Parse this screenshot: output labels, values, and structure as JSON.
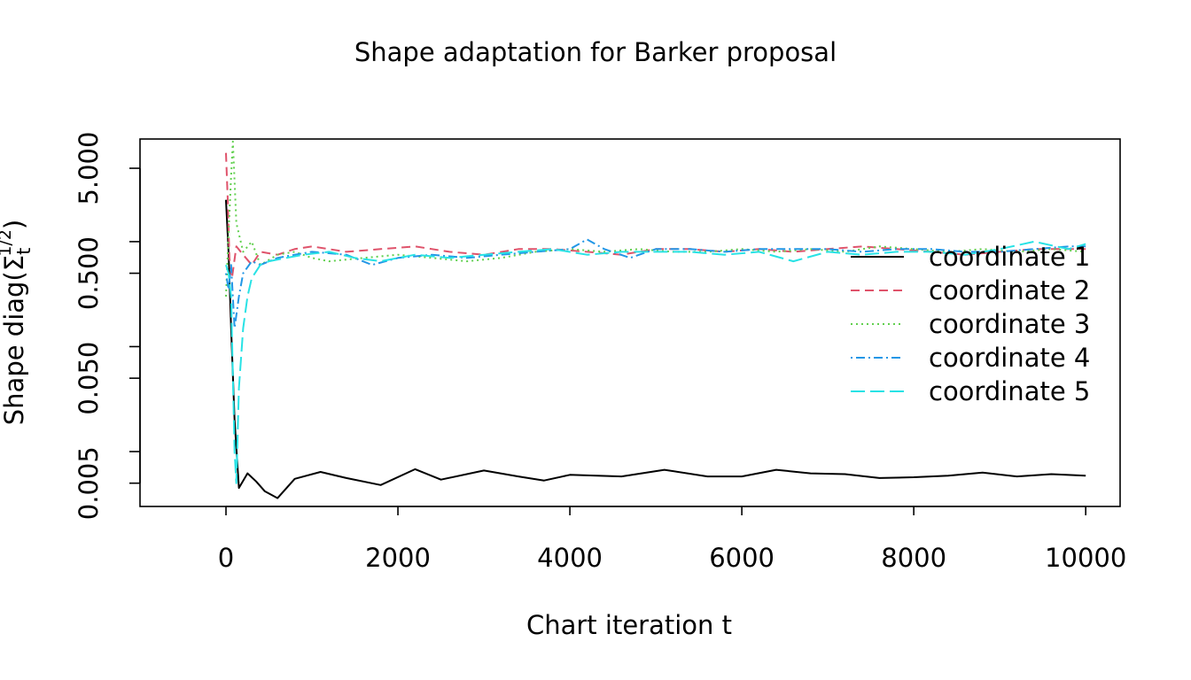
{
  "chart_data": {
    "type": "line",
    "title": "Shape adaptation for Barker proposal",
    "xlabel": "Chart iteration t",
    "ylabel_main": "Shape diag(",
    "ylabel_base": "Σ",
    "ylabel_sub": "t",
    "ylabel_sup": "1/2",
    "ylabel_close": ")",
    "y_scale": "log",
    "xlim": [
      -1000,
      10400
    ],
    "ylim": [
      0.003,
      9.5
    ],
    "grid": false,
    "legend_position": "right",
    "x_ticks": [
      0,
      2000,
      4000,
      6000,
      8000,
      10000
    ],
    "x_tick_labels": [
      "0",
      "2000",
      "4000",
      "6000",
      "8000",
      "10000"
    ],
    "y_labeled_ticks": [
      0.005,
      0.05,
      0.5,
      5
    ],
    "y_tick_labels": [
      "0.005",
      "0.050",
      "0.500",
      "5.000"
    ],
    "y_minor_ticks": [
      0.01,
      0.1,
      1
    ],
    "series": [
      {
        "name": "coordinate 1",
        "color": "#000000",
        "dash": "solid",
        "x": [
          0,
          30,
          60,
          100,
          150,
          250,
          350,
          450,
          600,
          800,
          1100,
          1400,
          1800,
          2200,
          2500,
          3000,
          3400,
          3700,
          4000,
          4600,
          5100,
          5600,
          6000,
          6400,
          6800,
          7200,
          7600,
          8000,
          8400,
          8800,
          9200,
          9600,
          10000
        ],
        "y": [
          2.5,
          0.8,
          0.15,
          0.02,
          0.0045,
          0.0062,
          0.0052,
          0.0042,
          0.0036,
          0.0055,
          0.0064,
          0.0056,
          0.0048,
          0.0068,
          0.0054,
          0.0066,
          0.0058,
          0.0053,
          0.006,
          0.0058,
          0.0067,
          0.0058,
          0.0058,
          0.0067,
          0.0062,
          0.0061,
          0.0056,
          0.0057,
          0.0059,
          0.0063,
          0.0058,
          0.0061,
          0.0059
        ]
      },
      {
        "name": "coordinate 2",
        "color": "#DF536B",
        "dash": "dashed",
        "x": [
          0,
          20,
          40,
          70,
          120,
          200,
          300,
          400,
          600,
          800,
          1000,
          1400,
          1800,
          2200,
          2600,
          3000,
          3400,
          3800,
          4200,
          4600,
          5000,
          5400,
          5800,
          6200,
          6600,
          7000,
          7400,
          7800,
          8200,
          8600,
          9000,
          9400,
          9800,
          10000
        ],
        "y": [
          7.0,
          2.5,
          0.7,
          0.45,
          0.9,
          0.75,
          0.6,
          0.8,
          0.75,
          0.85,
          0.9,
          0.8,
          0.85,
          0.9,
          0.8,
          0.75,
          0.85,
          0.85,
          0.8,
          0.75,
          0.85,
          0.85,
          0.8,
          0.85,
          0.8,
          0.85,
          0.9,
          0.85,
          0.8,
          0.75,
          0.8,
          0.85,
          0.85,
          0.85
        ]
      },
      {
        "name": "coordinate 3",
        "color": "#61D04F",
        "dash": "dotted",
        "x": [
          0,
          30,
          60,
          80,
          120,
          200,
          300,
          400,
          600,
          800,
          1000,
          1200,
          1600,
          2000,
          2400,
          2800,
          3200,
          3600,
          4000,
          4400,
          4800,
          5200,
          5600,
          6000,
          6400,
          6800,
          7200,
          7600,
          8000,
          8400,
          8800,
          9200,
          9600,
          10000
        ],
        "y": [
          0.3,
          1.2,
          4.2,
          9.0,
          1.5,
          0.8,
          1.0,
          0.6,
          0.75,
          0.8,
          0.7,
          0.65,
          0.7,
          0.75,
          0.7,
          0.65,
          0.7,
          0.8,
          0.85,
          0.8,
          0.85,
          0.8,
          0.8,
          0.85,
          0.8,
          0.85,
          0.8,
          0.9,
          0.85,
          0.8,
          0.85,
          0.8,
          0.85,
          0.8
        ]
      },
      {
        "name": "coordinate 4",
        "color": "#2297E6",
        "dash": "dotdash",
        "x": [
          0,
          30,
          60,
          100,
          150,
          200,
          300,
          400,
          600,
          800,
          1000,
          1400,
          1700,
          2000,
          2400,
          2800,
          3200,
          3600,
          4000,
          4200,
          4400,
          4700,
          5000,
          5400,
          5800,
          6200,
          6600,
          7000,
          7400,
          7800,
          8200,
          8600,
          9000,
          9400,
          9800,
          10000
        ],
        "y": [
          0.5,
          0.35,
          0.6,
          0.15,
          0.3,
          0.5,
          0.65,
          0.6,
          0.7,
          0.75,
          0.8,
          0.75,
          0.6,
          0.7,
          0.75,
          0.7,
          0.75,
          0.8,
          0.85,
          1.05,
          0.85,
          0.7,
          0.85,
          0.85,
          0.8,
          0.85,
          0.85,
          0.85,
          0.8,
          0.85,
          0.85,
          0.8,
          0.8,
          0.85,
          0.9,
          0.9
        ]
      },
      {
        "name": "coordinate 5",
        "color": "#28E2E5",
        "dash": "longdash",
        "x": [
          0,
          30,
          60,
          100,
          120,
          150,
          200,
          250,
          300,
          400,
          500,
          700,
          900,
          1200,
          1500,
          1800,
          2200,
          2600,
          3000,
          3400,
          3800,
          4200,
          4600,
          5000,
          5400,
          5800,
          6200,
          6600,
          7000,
          7400,
          7800,
          8200,
          8600,
          9000,
          9400,
          9800,
          10000
        ],
        "y": [
          0.6,
          0.5,
          0.3,
          0.01,
          0.005,
          0.04,
          0.15,
          0.3,
          0.45,
          0.6,
          0.65,
          0.7,
          0.75,
          0.8,
          0.7,
          0.65,
          0.75,
          0.7,
          0.75,
          0.8,
          0.85,
          0.75,
          0.8,
          0.8,
          0.8,
          0.75,
          0.8,
          0.65,
          0.8,
          0.75,
          0.8,
          0.8,
          0.75,
          0.85,
          1.0,
          0.85,
          0.95
        ]
      }
    ]
  }
}
